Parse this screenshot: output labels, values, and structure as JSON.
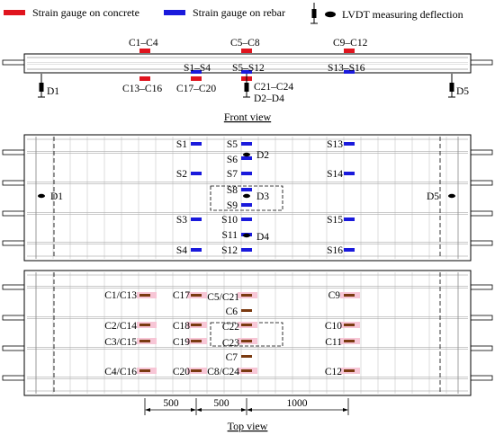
{
  "legend": {
    "concrete_label": "Strain gauge on concrete",
    "rebar_label": "Strain gauge on rebar",
    "lvdt_label": "LVDT measuring deflection",
    "concrete_color": "#e0141e",
    "rebar_color": "#1a1adc"
  },
  "front_view": {
    "caption": "Front view",
    "labels": {
      "c1_c4": "C1–C4",
      "c5_c8": "C5–C8",
      "c9_c12": "C9–C12",
      "s1_s4": "S1–S4",
      "s5_s12": "S5–S12",
      "s13_s16": "S13–S16",
      "c13_c16": "C13–C16",
      "c17_c20": "C17–C20",
      "c21_c24": "C21–C24",
      "d1": "D1",
      "d2_d4": "D2–D4",
      "d5": "D5"
    }
  },
  "top_view_rebar": {
    "labels": {
      "s1": "S1",
      "s2": "S2",
      "s3": "S3",
      "s4": "S4",
      "s5": "S5",
      "s6": "S6",
      "s7": "S7",
      "s8": "S8",
      "s9": "S9",
      "s10": "S10",
      "s11": "S11",
      "s12": "S12",
      "s13": "S13",
      "s14": "S14",
      "s15": "S15",
      "s16": "S16",
      "d1": "D1",
      "d2": "D2",
      "d3": "D3",
      "d4": "D4",
      "d5": "D5"
    }
  },
  "top_view_concrete": {
    "caption": "Top view",
    "brown_color": "#7a3a10",
    "labels": {
      "c1_c13": "C1/C13",
      "c2_c14": "C2/C14",
      "c3_c15": "C3/C15",
      "c4_c16": "C4/C16",
      "c17": "C17",
      "c18": "C18",
      "c19": "C19",
      "c20": "C20",
      "c5_c21": "C5/C21",
      "c6": "C6",
      "c22": "C22",
      "c23": "C23",
      "c7": "C7",
      "c8_c24": "C8/C24",
      "c9": "C9",
      "c10": "C10",
      "c11": "C11",
      "c12": "C12"
    },
    "dimensions": {
      "d1": "500",
      "d2": "500",
      "d3": "1000"
    }
  }
}
